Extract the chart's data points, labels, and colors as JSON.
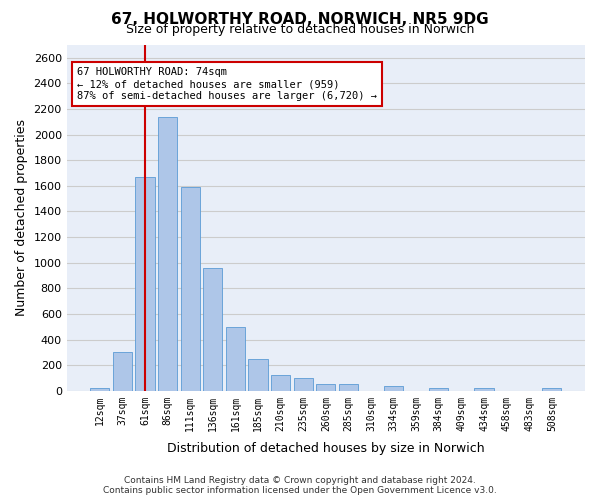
{
  "title_line1": "67, HOLWORTHY ROAD, NORWICH, NR5 9DG",
  "title_line2": "Size of property relative to detached houses in Norwich",
  "xlabel": "Distribution of detached houses by size in Norwich",
  "ylabel": "Number of detached properties",
  "footer_line1": "Contains HM Land Registry data © Crown copyright and database right 2024.",
  "footer_line2": "Contains public sector information licensed under the Open Government Licence v3.0.",
  "bin_labels": [
    "12sqm",
    "37sqm",
    "61sqm",
    "86sqm",
    "111sqm",
    "136sqm",
    "161sqm",
    "185sqm",
    "210sqm",
    "235sqm",
    "260sqm",
    "285sqm",
    "310sqm",
    "334sqm",
    "359sqm",
    "384sqm",
    "409sqm",
    "434sqm",
    "458sqm",
    "483sqm",
    "508sqm"
  ],
  "bar_values": [
    25,
    300,
    1670,
    2140,
    1590,
    960,
    500,
    250,
    120,
    100,
    50,
    50,
    0,
    35,
    0,
    25,
    0,
    25,
    0,
    0,
    25
  ],
  "bar_color": "#aec6e8",
  "bar_edgecolor": "#5b9bd5",
  "annotation_box_text": "67 HOLWORTHY ROAD: 74sqm\n← 12% of detached houses are smaller (959)\n87% of semi-detached houses are larger (6,720) →",
  "vline_color": "#cc0000",
  "ylim": [
    0,
    2700
  ],
  "yticks": [
    0,
    200,
    400,
    600,
    800,
    1000,
    1200,
    1400,
    1600,
    1800,
    2000,
    2200,
    2400,
    2600
  ],
  "grid_color": "#cccccc",
  "background_color": "#e8eef8"
}
